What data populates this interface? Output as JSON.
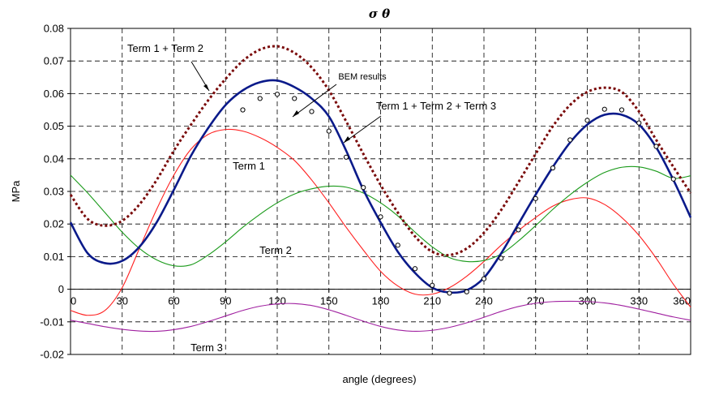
{
  "chart_data": {
    "type": "line",
    "title": "σ θ",
    "xlabel": "angle (degrees)",
    "ylabel": "MPa",
    "xlim": [
      0,
      360
    ],
    "ylim": [
      -0.02,
      0.08
    ],
    "x_ticks": [
      "0",
      "30",
      "60",
      "90",
      "120",
      "150",
      "180",
      "210",
      "240",
      "270",
      "300",
      "330",
      "360"
    ],
    "y_ticks": [
      "-0.02",
      "-0.01",
      "0",
      "0.01",
      "0.02",
      "0.03",
      "0.04",
      "0.05",
      "0.06",
      "0.07",
      "0.08"
    ],
    "grid": true,
    "series": [
      {
        "name": "Term 1",
        "color": "#ff2020",
        "style": "solid",
        "x": [
          0,
          10,
          20,
          30,
          40,
          50,
          60,
          70,
          80,
          90,
          100,
          110,
          120,
          130,
          140,
          150,
          160,
          170,
          180,
          190,
          200,
          210,
          220,
          230,
          240,
          250,
          260,
          270,
          280,
          290,
          300,
          310,
          320,
          330,
          340,
          350,
          360
        ],
        "y": [
          -0.0065,
          -0.008,
          -0.0065,
          0.0005,
          0.0125,
          0.0245,
          0.035,
          0.043,
          0.0475,
          0.049,
          0.0485,
          0.0465,
          0.0435,
          0.0395,
          0.0335,
          0.0265,
          0.019,
          0.012,
          0.0055,
          0.001,
          -0.0015,
          -0.0015,
          0.0005,
          0.004,
          0.0085,
          0.0135,
          0.018,
          0.022,
          0.0255,
          0.0275,
          0.028,
          0.026,
          0.022,
          0.0165,
          0.0095,
          0.0015,
          -0.0055
        ]
      },
      {
        "name": "Term 2",
        "color": "#1a9a1a",
        "style": "solid",
        "x": [
          0,
          10,
          20,
          30,
          40,
          50,
          60,
          70,
          80,
          90,
          100,
          110,
          120,
          130,
          140,
          150,
          160,
          170,
          180,
          190,
          200,
          210,
          220,
          230,
          240,
          250,
          260,
          270,
          280,
          290,
          300,
          310,
          320,
          330,
          340,
          350,
          360
        ],
        "y": [
          0.035,
          0.0295,
          0.0235,
          0.0175,
          0.0125,
          0.009,
          0.0072,
          0.0075,
          0.0105,
          0.0145,
          0.019,
          0.023,
          0.0265,
          0.0292,
          0.0308,
          0.0316,
          0.0313,
          0.0295,
          0.0265,
          0.0225,
          0.0175,
          0.013,
          0.0097,
          0.0085,
          0.0088,
          0.0108,
          0.0148,
          0.0195,
          0.0245,
          0.029,
          0.0328,
          0.0358,
          0.0374,
          0.0375,
          0.0362,
          0.034,
          0.0348
        ]
      },
      {
        "name": "Term 3",
        "color": "#a020a0",
        "style": "solid",
        "x": [
          0,
          10,
          20,
          30,
          40,
          50,
          60,
          70,
          80,
          90,
          100,
          110,
          120,
          130,
          140,
          150,
          160,
          170,
          180,
          190,
          200,
          210,
          220,
          230,
          240,
          250,
          260,
          270,
          280,
          290,
          300,
          310,
          320,
          330,
          340,
          350,
          360
        ],
        "y": [
          -0.0095,
          -0.0105,
          -0.0115,
          -0.0123,
          -0.0128,
          -0.0129,
          -0.0124,
          -0.0114,
          -0.0099,
          -0.0082,
          -0.0065,
          -0.0052,
          -0.0045,
          -0.0044,
          -0.005,
          -0.0063,
          -0.008,
          -0.0098,
          -0.0114,
          -0.0125,
          -0.0129,
          -0.0126,
          -0.0117,
          -0.0103,
          -0.0086,
          -0.0068,
          -0.0053,
          -0.0043,
          -0.0038,
          -0.0037,
          -0.0038,
          -0.0042,
          -0.005,
          -0.0061,
          -0.0073,
          -0.0085,
          -0.0095
        ]
      },
      {
        "name": "Term 1 + Term 2",
        "color": "#7a0a0a",
        "style": "dotted",
        "x": [
          0,
          10,
          20,
          30,
          40,
          50,
          60,
          70,
          80,
          90,
          100,
          110,
          120,
          130,
          140,
          150,
          160,
          170,
          180,
          190,
          200,
          210,
          220,
          230,
          240,
          250,
          260,
          270,
          280,
          290,
          300,
          310,
          320,
          330,
          340,
          350,
          360
        ],
        "y": [
          0.029,
          0.0215,
          0.0195,
          0.021,
          0.026,
          0.0335,
          0.0425,
          0.0505,
          0.058,
          0.0645,
          0.07,
          0.0735,
          0.0745,
          0.0725,
          0.068,
          0.061,
          0.0515,
          0.0415,
          0.032,
          0.0235,
          0.0162,
          0.0115,
          0.0105,
          0.0125,
          0.0173,
          0.0243,
          0.0328,
          0.0415,
          0.05,
          0.0565,
          0.0605,
          0.0618,
          0.0605,
          0.0545,
          0.0458,
          0.0375,
          0.0295
        ]
      },
      {
        "name": "Term 1 + Term 2 + Term 3",
        "color": "#0a1a8a",
        "style": "solid-thick",
        "x": [
          0,
          10,
          20,
          30,
          40,
          50,
          60,
          70,
          80,
          90,
          100,
          110,
          120,
          130,
          140,
          150,
          160,
          170,
          180,
          190,
          200,
          210,
          220,
          230,
          240,
          250,
          260,
          270,
          280,
          290,
          300,
          310,
          320,
          330,
          340,
          350,
          360
        ],
        "y": [
          0.0205,
          0.011,
          0.008,
          0.0087,
          0.013,
          0.0205,
          0.0305,
          0.041,
          0.0495,
          0.0565,
          0.061,
          0.0635,
          0.064,
          0.062,
          0.0585,
          0.053,
          0.0425,
          0.0305,
          0.0205,
          0.0115,
          0.005,
          0.0005,
          -0.001,
          -0.0003,
          0.0035,
          0.011,
          0.02,
          0.029,
          0.0375,
          0.045,
          0.0505,
          0.0535,
          0.0535,
          0.0505,
          0.0435,
          0.0335,
          0.022
        ]
      },
      {
        "name": "BEM results",
        "color": "#000000",
        "style": "markers",
        "x": [
          100,
          110,
          120,
          130,
          140,
          150,
          160,
          170,
          180,
          190,
          200,
          210,
          220,
          230,
          240,
          250,
          260,
          270,
          280,
          290,
          300,
          310,
          320,
          330,
          340,
          350
        ],
        "y": [
          0.055,
          0.0585,
          0.0598,
          0.0585,
          0.0545,
          0.0485,
          0.0405,
          0.0312,
          0.0222,
          0.0135,
          0.0063,
          0.0012,
          -0.0012,
          -0.0008,
          0.0032,
          0.0095,
          0.0182,
          0.0278,
          0.0372,
          0.0458,
          0.0518,
          0.0552,
          0.055,
          0.051,
          0.0438,
          0.0338
        ]
      }
    ],
    "annotations": [
      {
        "name": "annotation-term1-plus-term2",
        "text": "Term 1 + Term 2"
      },
      {
        "name": "annotation-bem",
        "text": "BEM results"
      },
      {
        "name": "annotation-term123",
        "text": "Term 1 + Term 2 + Term 3"
      },
      {
        "name": "annotation-term1",
        "text": "Term 1"
      },
      {
        "name": "annotation-term2",
        "text": "Term 2"
      },
      {
        "name": "annotation-term3",
        "text": "Term 3"
      }
    ]
  }
}
